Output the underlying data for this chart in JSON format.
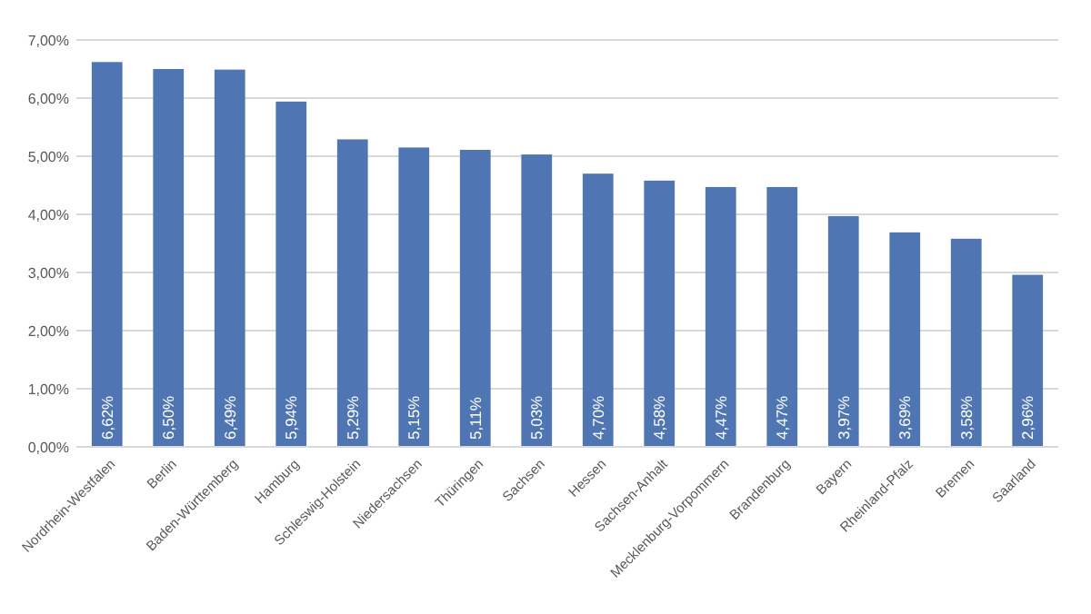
{
  "chart_data": {
    "type": "bar",
    "categories": [
      "Nordrhein-Westfalen",
      "Berlin",
      "Baden-Württemberg",
      "Hamburg",
      "Schleswig-Holstein",
      "Niedersachsen",
      "Thüringen",
      "Sachsen",
      "Hessen",
      "Sachsen-Anhalt",
      "Mecklenburg-Vorpommern",
      "Brandenburg",
      "Bayern",
      "Rheinland-Pfalz",
      "Bremen",
      "Saarland"
    ],
    "values": [
      6.62,
      6.5,
      6.49,
      5.94,
      5.29,
      5.15,
      5.11,
      5.03,
      4.7,
      4.58,
      4.47,
      4.47,
      3.97,
      3.69,
      3.58,
      2.96
    ],
    "value_labels": [
      "6,62%",
      "6,50%",
      "6,49%",
      "5,94%",
      "5,29%",
      "5,15%",
      "5,11%",
      "5,03%",
      "4,70%",
      "4,58%",
      "4,47%",
      "4,47%",
      "3,97%",
      "3,69%",
      "3,58%",
      "2,96%"
    ],
    "color": "#4f76b3",
    "ylim": [
      0,
      7
    ],
    "yticks": [
      {
        "value": 0,
        "label": "0,00%"
      },
      {
        "value": 1,
        "label": "1,00%"
      },
      {
        "value": 2,
        "label": "2,00%"
      },
      {
        "value": 3,
        "label": "3,00%"
      },
      {
        "value": 4,
        "label": "4,00%"
      },
      {
        "value": 5,
        "label": "5,00%"
      },
      {
        "value": 6,
        "label": "6,00%"
      },
      {
        "value": 7,
        "label": "7,00%"
      }
    ],
    "grid": "y"
  }
}
